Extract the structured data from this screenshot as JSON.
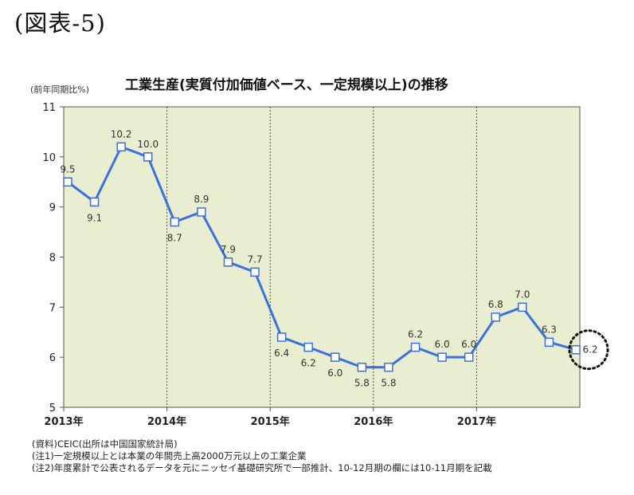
{
  "figure_label": "(図表-5)",
  "colors": {
    "plot_bg": "#e8eecf",
    "line": "#3c6fe0",
    "marker_fill": "#ffffff",
    "grid": "#555555",
    "frame": "#555555"
  },
  "chart_data": {
    "type": "line",
    "title": "工業生産(実質付加価値ベース、一定規模以上)の推移",
    "ylabel": "(前年同期比%)",
    "xlabel": "",
    "ylim": [
      5,
      11
    ],
    "yticks": [
      "5",
      "6",
      "7",
      "8",
      "9",
      "10",
      "11"
    ],
    "year_labels": [
      "2013年",
      "2014年",
      "2015年",
      "2016年",
      "2017年"
    ],
    "quarters_per_year": 4,
    "series": [
      {
        "values": [
          9.5,
          9.1,
          10.2,
          10.0,
          8.7,
          8.9,
          7.9,
          7.7,
          6.4,
          6.2,
          6.0,
          5.8,
          5.8,
          6.2,
          6.0,
          6.0,
          6.8,
          7.0,
          6.3,
          6.15
        ],
        "labels": [
          "9.5",
          "9.1",
          "10.2",
          "10.0",
          "8.7",
          "8.9",
          "7.9",
          "7.7",
          "6.4",
          "6.2",
          "6.0",
          "5.8",
          "5.8",
          "6.2",
          "6.0",
          "6.0",
          "6.8",
          "7.0",
          "6.3",
          "6.2"
        ]
      }
    ],
    "highlight_last_point": true
  },
  "notes": [
    "(資料)CEIC(出所は中国国家統計局)",
    "(注1)一定規模以上とは本業の年間売上高2000万元以上の工業企業",
    "(注2)年度累計で公表されるデータを元にニッセイ基礎研究所で一部推計、10-12月期の欄には10-11月期を記載"
  ]
}
